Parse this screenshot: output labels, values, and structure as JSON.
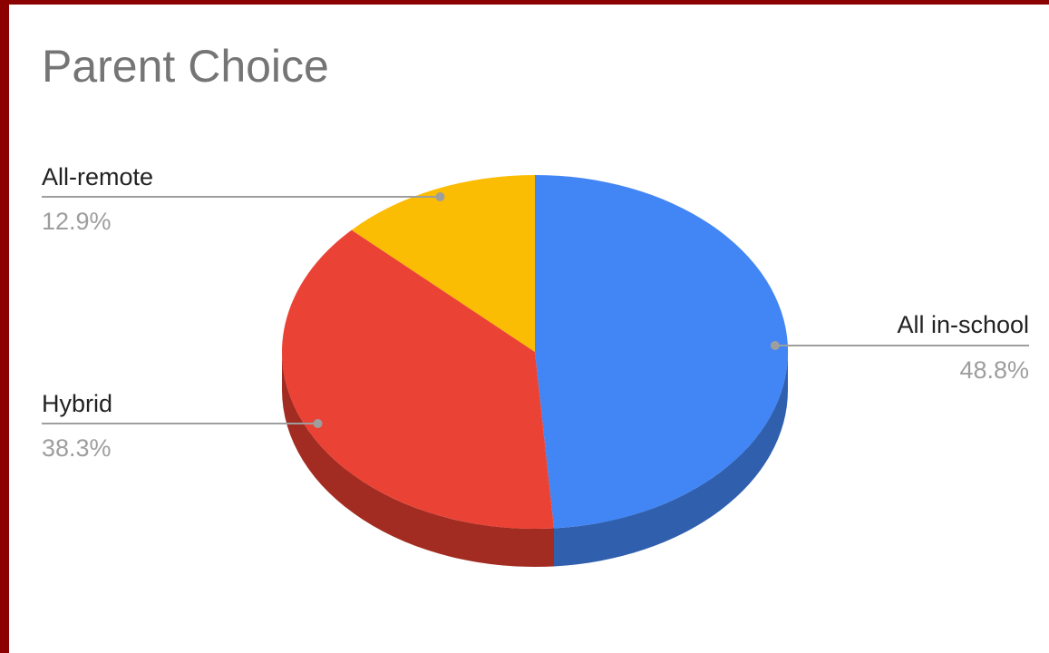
{
  "chart_data": {
    "type": "pie",
    "title": "Parent Choice",
    "is_3d": true,
    "slices": [
      {
        "label": "All in-school",
        "value": 48.8,
        "display": "48.8%",
        "color": "#4285f4",
        "side_color": "#2f5fad"
      },
      {
        "label": "Hybrid",
        "value": 38.3,
        "display": "38.3%",
        "color": "#ea4335",
        "side_color": "#a32c22"
      },
      {
        "label": "All-remote",
        "value": 12.9,
        "display": "12.9%",
        "color": "#fbbc04",
        "side_color": "#b38600"
      }
    ],
    "legend": "none",
    "label_style": "callout"
  }
}
